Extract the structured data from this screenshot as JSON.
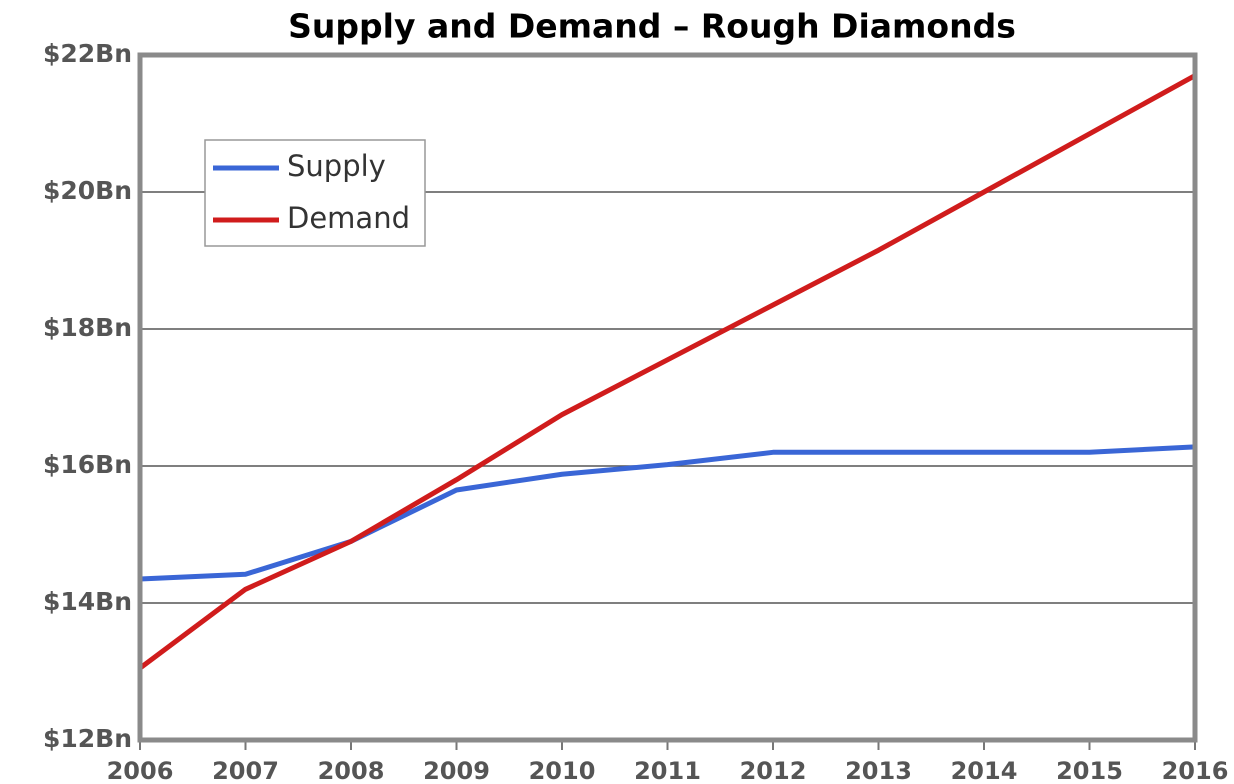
{
  "chart_data": {
    "type": "line",
    "title": "Supply and Demand – Rough Diamonds",
    "categories": [
      "2006",
      "2007",
      "2008",
      "2009",
      "2010",
      "2011",
      "2012",
      "2013",
      "2014",
      "2015",
      "2016"
    ],
    "series": [
      {
        "name": "Supply",
        "color": "#3a66d6",
        "values": [
          14.35,
          14.42,
          14.9,
          15.65,
          15.88,
          16.02,
          16.2,
          16.2,
          16.2,
          16.2,
          16.28
        ]
      },
      {
        "name": "Demand",
        "color": "#d01c1c",
        "values": [
          13.05,
          14.2,
          14.9,
          15.8,
          16.75,
          17.55,
          18.35,
          19.15,
          20.0,
          20.85,
          21.7
        ]
      }
    ],
    "ylim": [
      12,
      22
    ],
    "yticks": [
      {
        "value": 12,
        "label": "$12Bn"
      },
      {
        "value": 14,
        "label": "$14Bn"
      },
      {
        "value": 16,
        "label": "$16Bn"
      },
      {
        "value": 18,
        "label": "$18Bn"
      },
      {
        "value": 20,
        "label": "$20Bn"
      },
      {
        "value": 22,
        "label": "$22Bn"
      }
    ],
    "grid": true,
    "legend": "upper left"
  }
}
